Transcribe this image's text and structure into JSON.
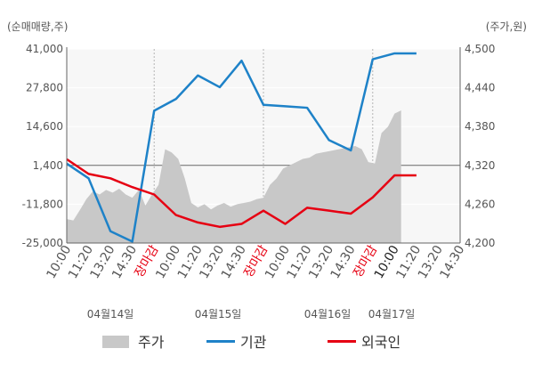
{
  "chart_data": {
    "type": "line",
    "left_axis_unit": "(순매매량,주)",
    "right_axis_unit": "(주가,원)",
    "left_ticks": [
      "41,000",
      "27,800",
      "14,600",
      "1,400",
      "-11,800",
      "-25,000"
    ],
    "left_tick_values": [
      41000,
      27800,
      14600,
      1400,
      -11800,
      -25000
    ],
    "right_ticks": [
      "4,500",
      "4,440",
      "4,380",
      "4,320",
      "4,260",
      "4,200"
    ],
    "right_tick_values": [
      4500,
      4440,
      4380,
      4320,
      4260,
      4200
    ],
    "ylim_left": [
      -25000,
      41000
    ],
    "ylim_right": [
      4200,
      4500
    ],
    "x_tick_labels": [
      "10:00",
      "11:20",
      "13:20",
      "14:30",
      "장마감",
      "10:00",
      "11:20",
      "13:20",
      "14:30",
      "장마감",
      "10:00",
      "11:20",
      "13:20",
      "14:30",
      "장마감",
      "10:00",
      "11:20",
      "13:20",
      "14:30"
    ],
    "date_labels": [
      "04월14일",
      "04월15일",
      "04월16일",
      "04월17일"
    ],
    "series": [
      {
        "name": "기관",
        "color": "#1e82c8",
        "axis": "left",
        "x": [
          0,
          1,
          2,
          3,
          4,
          5,
          6,
          7,
          8,
          9,
          10,
          11,
          12,
          13,
          14,
          15,
          16
        ],
        "values": [
          2000,
          -3000,
          -21000,
          -24500,
          20000,
          24000,
          32000,
          28000,
          37000,
          22000,
          21500,
          21000,
          10000,
          6500,
          37500,
          39500,
          39500
        ]
      },
      {
        "name": "외국인",
        "color": "#e60012",
        "axis": "left",
        "x": [
          0,
          1,
          2,
          3,
          4,
          5,
          6,
          7,
          8,
          9,
          10,
          11,
          12,
          13,
          14,
          15,
          16
        ],
        "values": [
          3500,
          -1500,
          -3000,
          -6000,
          -8500,
          -15500,
          -18000,
          -19500,
          -18500,
          -14000,
          -18500,
          -13000,
          -14000,
          -15000,
          -9500,
          -2000,
          -2000
        ]
      },
      {
        "name": "주가",
        "color": "#c8c8c8",
        "axis": "right",
        "x": [
          0.0,
          0.3,
          0.6,
          0.9,
          1.2,
          1.5,
          1.8,
          2.1,
          2.4,
          2.7,
          3.0,
          3.3,
          3.6,
          3.9,
          4.2,
          4.5,
          4.8,
          5.1,
          5.4,
          5.7,
          6.0,
          6.3,
          6.6,
          6.9,
          7.2,
          7.5,
          7.8,
          8.1,
          8.4,
          8.7,
          9.0,
          9.3,
          9.6,
          9.9,
          10.2,
          10.5,
          10.8,
          11.1,
          11.4,
          11.7,
          12.0,
          12.3,
          12.6,
          12.9,
          13.2,
          13.5,
          13.8,
          14.1,
          14.4,
          14.7,
          15.0,
          15.3
        ],
        "values": [
          4237,
          4235,
          4251,
          4268,
          4280,
          4275,
          4282,
          4278,
          4284,
          4275,
          4270,
          4282,
          4258,
          4275,
          4290,
          4345,
          4340,
          4330,
          4300,
          4262,
          4255,
          4260,
          4252,
          4258,
          4262,
          4256,
          4260,
          4262,
          4264,
          4268,
          4270,
          4290,
          4300,
          4315,
          4320,
          4325,
          4330,
          4332,
          4338,
          4340,
          4342,
          4344,
          4346,
          4348,
          4350,
          4345,
          4325,
          4323,
          4370,
          4380,
          4400,
          4405
        ]
      }
    ]
  },
  "legend": {
    "price_label": "주가",
    "institution_label": "기관",
    "foreign_label": "외국인"
  },
  "colors": {
    "price": "#c8c8c8",
    "institution": "#1e82c8",
    "foreign": "#e60012",
    "close_label": "#e60012"
  }
}
